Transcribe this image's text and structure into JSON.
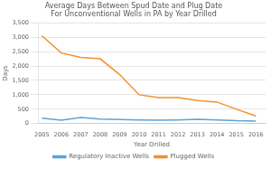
{
  "chart_data": {
    "type": "line",
    "title": "Average Days Between Spud Date and Plug Date\nFor Unconventional Wells in PA by Year Drilled",
    "x_label": "Year Drilled",
    "y_label": "Days",
    "x": [
      2005,
      2006,
      2007,
      2008,
      2009,
      2010,
      2011,
      2012,
      2013,
      2014,
      2015,
      2016
    ],
    "series": [
      {
        "name": "Plugged Wells",
        "color": "#f4902a",
        "values": [
          3050,
          2450,
          2300,
          2250,
          1700,
          1000,
          900,
          900,
          800,
          750,
          500,
          270
        ]
      },
      {
        "name": "Regulatory Inactive Wells",
        "color": "#5ba3d9",
        "values": [
          190,
          120,
          210,
          155,
          140,
          130,
          120,
          130,
          150,
          130,
          100,
          90
        ]
      }
    ],
    "xlim": [
      2004.8,
      2016.5
    ],
    "xticks": [
      2005,
      2006,
      2007,
      2008,
      2009,
      2010,
      2011,
      2012,
      2013,
      2014,
      2015,
      2016
    ],
    "ylim": [
      0,
      3500
    ],
    "yticks": [
      0,
      500,
      {
        "value": 1000,
        "label": "1,000"
      },
      {
        "value": 1500,
        "label": "1,500"
      },
      {
        "value": 2000,
        "label": "2,000"
      },
      {
        "value": 2500,
        "label": "2,500"
      },
      {
        "value": 3000,
        "label": "3,000"
      },
      {
        "value": 3500,
        "label": "3,500"
      }
    ],
    "grid": true,
    "legend": "bottom"
  }
}
